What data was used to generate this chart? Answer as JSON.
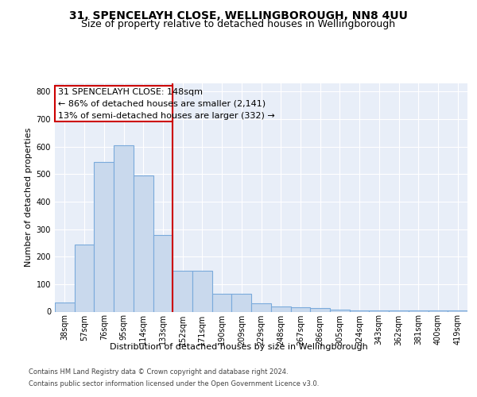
{
  "title1": "31, SPENCELAYH CLOSE, WELLINGBOROUGH, NN8 4UU",
  "title2": "Size of property relative to detached houses in Wellingborough",
  "xlabel": "Distribution of detached houses by size in Wellingborough",
  "ylabel": "Number of detached properties",
  "footnote1": "Contains HM Land Registry data © Crown copyright and database right 2024.",
  "footnote2": "Contains public sector information licensed under the Open Government Licence v3.0.",
  "annotation_line1": "31 SPENCELAYH CLOSE: 148sqm",
  "annotation_line2": "← 86% of detached houses are smaller (2,141)",
  "annotation_line3": "13% of semi-detached houses are larger (332) →",
  "bar_color": "#c9d9ed",
  "bar_edge_color": "#7aaadb",
  "vline_color": "#cc0000",
  "vline_x_index": 6,
  "background_color": "#e8eef8",
  "categories": [
    "38sqm",
    "57sqm",
    "76sqm",
    "95sqm",
    "114sqm",
    "133sqm",
    "152sqm",
    "171sqm",
    "190sqm",
    "209sqm",
    "229sqm",
    "248sqm",
    "267sqm",
    "286sqm",
    "305sqm",
    "324sqm",
    "343sqm",
    "362sqm",
    "381sqm",
    "400sqm",
    "419sqm"
  ],
  "values": [
    33,
    245,
    545,
    605,
    495,
    278,
    148,
    148,
    65,
    65,
    30,
    20,
    15,
    13,
    7,
    5,
    5,
    5,
    3,
    5,
    5
  ],
  "ylim": [
    0,
    830
  ],
  "yticks": [
    0,
    100,
    200,
    300,
    400,
    500,
    600,
    700,
    800
  ],
  "grid_color": "#ffffff",
  "title1_fontsize": 10,
  "title2_fontsize": 9,
  "axis_label_fontsize": 8,
  "tick_fontsize": 7,
  "annotation_fontsize": 8,
  "footnote_fontsize": 6
}
